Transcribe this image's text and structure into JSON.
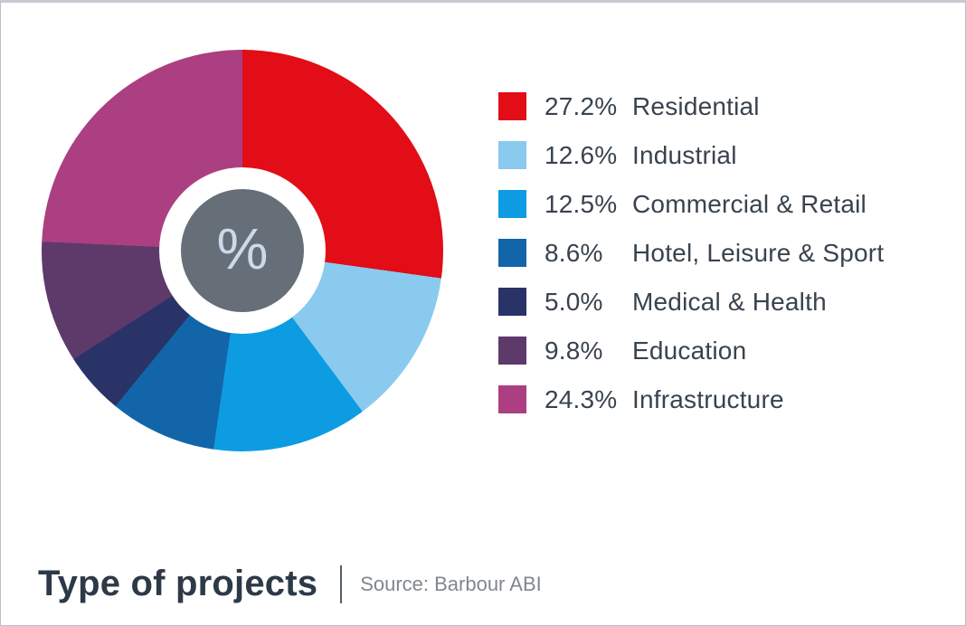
{
  "window": {
    "background": "#ffffff",
    "border_color": "#b9bfc6",
    "top_border_color": "#c5cbd1"
  },
  "chart_data": {
    "type": "pie",
    "subtype": "donut",
    "title": "Type of projects",
    "source": "Source: Barbour ABI",
    "center_symbol": "%",
    "center_circle_color": "#666e78",
    "center_symbol_color": "#ccd9e9",
    "donut_hole_color": "#ffffff",
    "legend_position": "right",
    "start_angle_deg": 0,
    "direction": "clockwise",
    "series": [
      {
        "label": "Residential",
        "value": 27.2,
        "percent_label": "27.2%",
        "color": "#e20d16"
      },
      {
        "label": "Industrial",
        "value": 12.6,
        "percent_label": "12.6%",
        "color": "#8acaee"
      },
      {
        "label": "Commercial & Retail",
        "value": 12.5,
        "percent_label": "12.5%",
        "color": "#0d9ce2"
      },
      {
        "label": "Hotel, Leisure & Sport",
        "value": 8.6,
        "percent_label": "8.6%",
        "color": "#1365a9"
      },
      {
        "label": "Medical & Health",
        "value": 5.0,
        "percent_label": "5.0%",
        "color": "#2a3367"
      },
      {
        "label": "Education",
        "value": 9.8,
        "percent_label": "9.8%",
        "color": "#5e3a6b"
      },
      {
        "label": "Infrastructure",
        "value": 24.3,
        "percent_label": "24.3%",
        "color": "#ab3f81"
      }
    ]
  }
}
